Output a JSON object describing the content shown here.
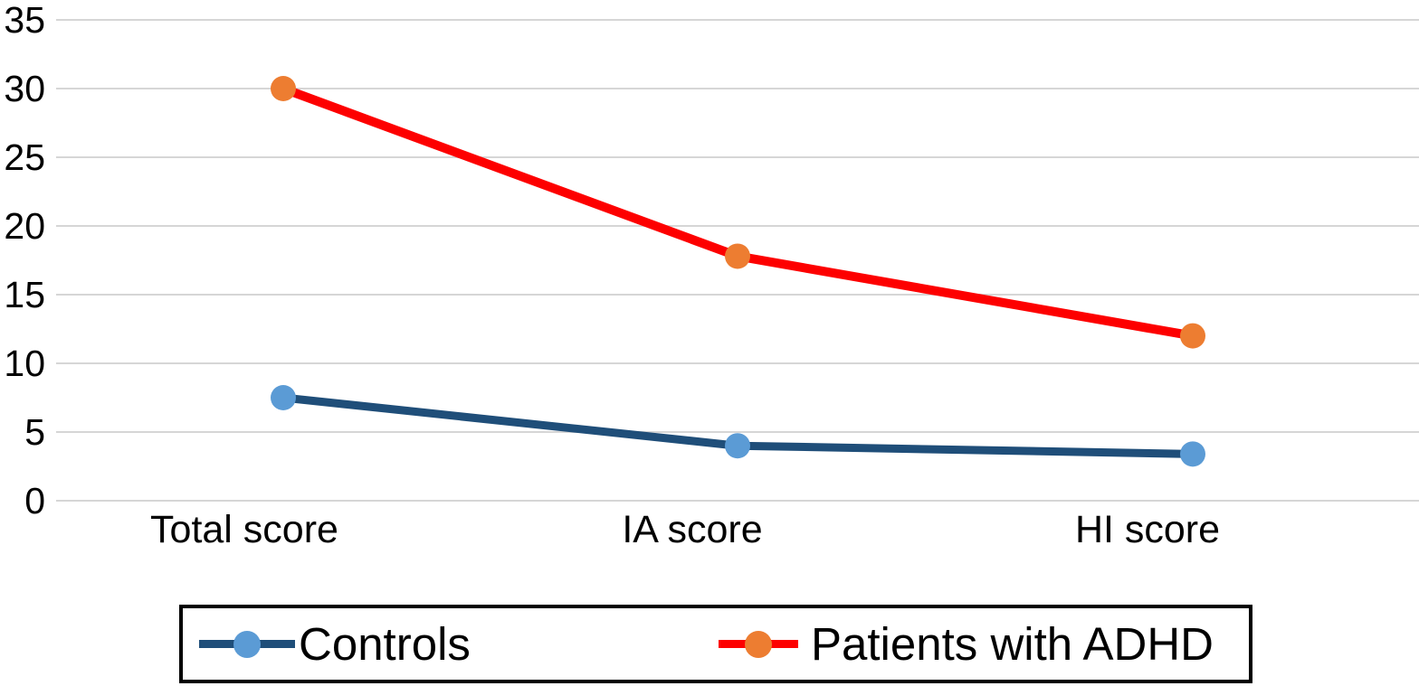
{
  "chart_data": {
    "type": "line",
    "title": "",
    "xlabel": "",
    "ylabel": "",
    "categories": [
      "Total score",
      "IA score",
      "HI score"
    ],
    "series": [
      {
        "name": "Controls",
        "values": [
          7.5,
          4,
          3.4
        ],
        "line_color": "#1f4e79",
        "marker_color": "#5b9bd5"
      },
      {
        "name": "Patients with ADHD",
        "values": [
          30,
          17.8,
          12
        ],
        "line_color": "#fd0000",
        "marker_color": "#ed7d31"
      }
    ],
    "ylim": [
      0,
      35
    ],
    "ytick_step": 5,
    "yticks": [
      "0",
      "5",
      "10",
      "15",
      "20",
      "25",
      "30",
      "35"
    ],
    "grid": "horizontal",
    "gridline_color": "#d6d6d6",
    "background": "#ffffff",
    "text_color": "#000000",
    "legend": {
      "position": "bottom",
      "border_color": "#000000",
      "entries": [
        "Controls",
        "Patients with ADHD"
      ]
    }
  }
}
